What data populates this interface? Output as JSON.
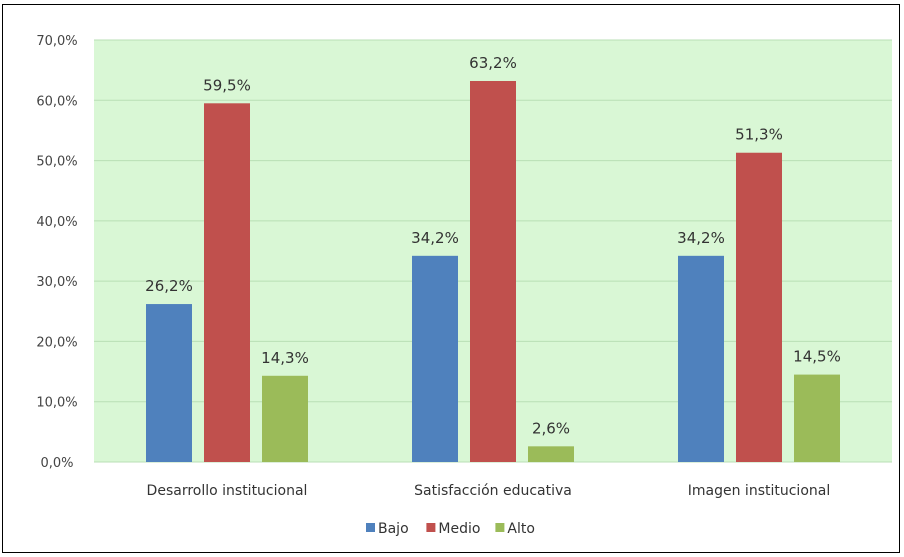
{
  "chart_data": {
    "type": "bar",
    "categories": [
      "Desarrollo institucional",
      "Satisfacción educativa",
      "Imagen institucional"
    ],
    "series": [
      {
        "name": "Bajo",
        "values": [
          26.2,
          34.2,
          34.2
        ],
        "labels": [
          "26,2%",
          "34,2%",
          "34,2%"
        ],
        "color": "#4f81bd"
      },
      {
        "name": "Medio",
        "values": [
          59.5,
          63.2,
          51.3
        ],
        "labels": [
          "59,5%",
          "63,2%",
          "51,3%"
        ],
        "color": "#c0504d"
      },
      {
        "name": "Alto",
        "values": [
          14.3,
          2.6,
          14.5
        ],
        "labels": [
          "14,3%",
          "2,6%",
          "14,5%"
        ],
        "color": "#9bbb59"
      }
    ],
    "y_ticks": [
      "0,0%",
      "10,0%",
      "20,0%",
      "30,0%",
      "40,0%",
      "50,0%",
      "60,0%",
      "70,0%"
    ],
    "ylim": [
      0,
      70
    ],
    "grid": true,
    "legend_position": "bottom",
    "plot_background": "#d9f7d5",
    "gridline_color": "#b9dfb5"
  }
}
